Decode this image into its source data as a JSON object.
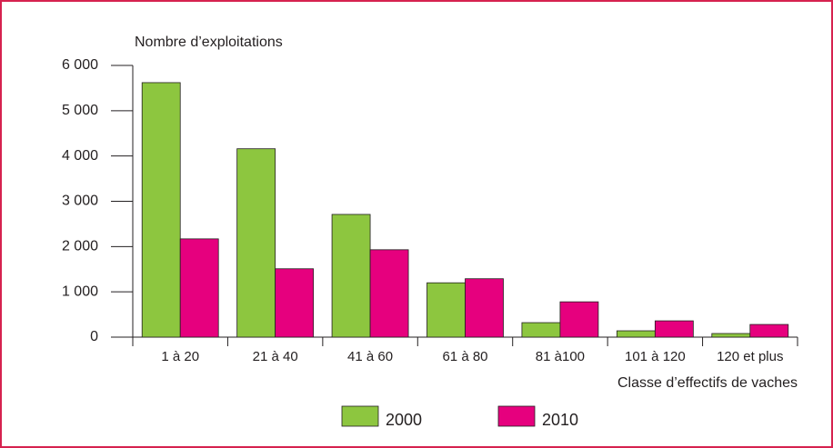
{
  "chart_data": {
    "type": "bar",
    "y_label": "Nombre d’exploitations",
    "x_label": "Classe d’effectifs de vaches",
    "categories": [
      "1 à 20",
      "21 à 40",
      "41 à 60",
      "61 à 80",
      "81 à100",
      "101 à 120",
      "120 et plus"
    ],
    "series": [
      {
        "name": "2000",
        "color": "#8dc63f",
        "values": [
          5620,
          4160,
          2710,
          1200,
          320,
          140,
          80
        ]
      },
      {
        "name": "2010",
        "color": "#e6007e",
        "values": [
          2170,
          1510,
          1930,
          1290,
          780,
          360,
          280
        ]
      }
    ],
    "ylim": [
      0,
      6000
    ],
    "yticks": [
      0,
      {
        "value": 1000,
        "label": "1 000"
      },
      {
        "value": 2000,
        "label": "2 000"
      },
      {
        "value": 3000,
        "label": "3 000"
      },
      {
        "value": 4000,
        "label": "4 000"
      },
      {
        "value": 5000,
        "label": "5 000"
      },
      {
        "value": 6000,
        "label": "6 000"
      }
    ],
    "grid": false
  }
}
